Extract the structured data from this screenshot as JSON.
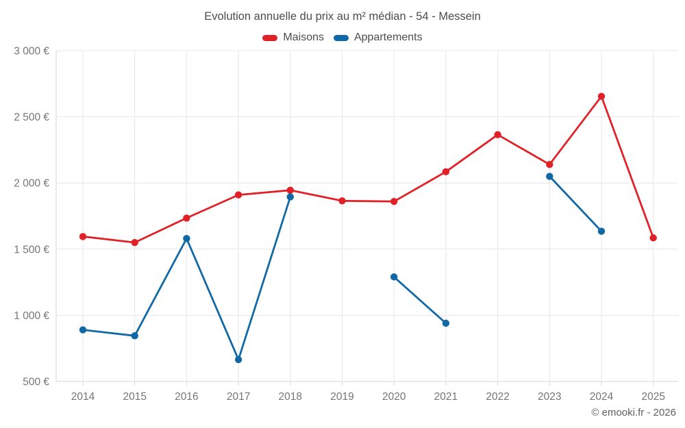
{
  "chart_data": {
    "type": "line",
    "title": "Evolution annuelle du prix au m² médian - 54 - Messein",
    "categories": [
      "2014",
      "2015",
      "2016",
      "2017",
      "2018",
      "2019",
      "2020",
      "2021",
      "2022",
      "2023",
      "2024",
      "2025"
    ],
    "series": [
      {
        "name": "Maisons",
        "color": "#e02128",
        "values": [
          1595,
          1550,
          1735,
          1910,
          1945,
          1865,
          1860,
          2085,
          2365,
          2140,
          2655,
          1585
        ]
      },
      {
        "name": "Appartements",
        "color": "#1069a6",
        "values": [
          890,
          845,
          1580,
          665,
          1895,
          null,
          1290,
          940,
          null,
          2050,
          1635,
          null
        ]
      }
    ],
    "ylim": [
      500,
      3000
    ],
    "ytick_step": 500,
    "ytick_labels": [
      "500 €",
      "1 000 €",
      "1 500 €",
      "2 000 €",
      "2 500 €",
      "3 000 €"
    ],
    "currency_suffix": " €",
    "grid": true,
    "legend_position": "top",
    "copyright": "© emooki.fr - 2026"
  },
  "colors": {
    "grid": "#e7e7e7",
    "axis": "#d6d6d6",
    "axis_text": "#757575",
    "title_text": "#4c4c4c"
  }
}
